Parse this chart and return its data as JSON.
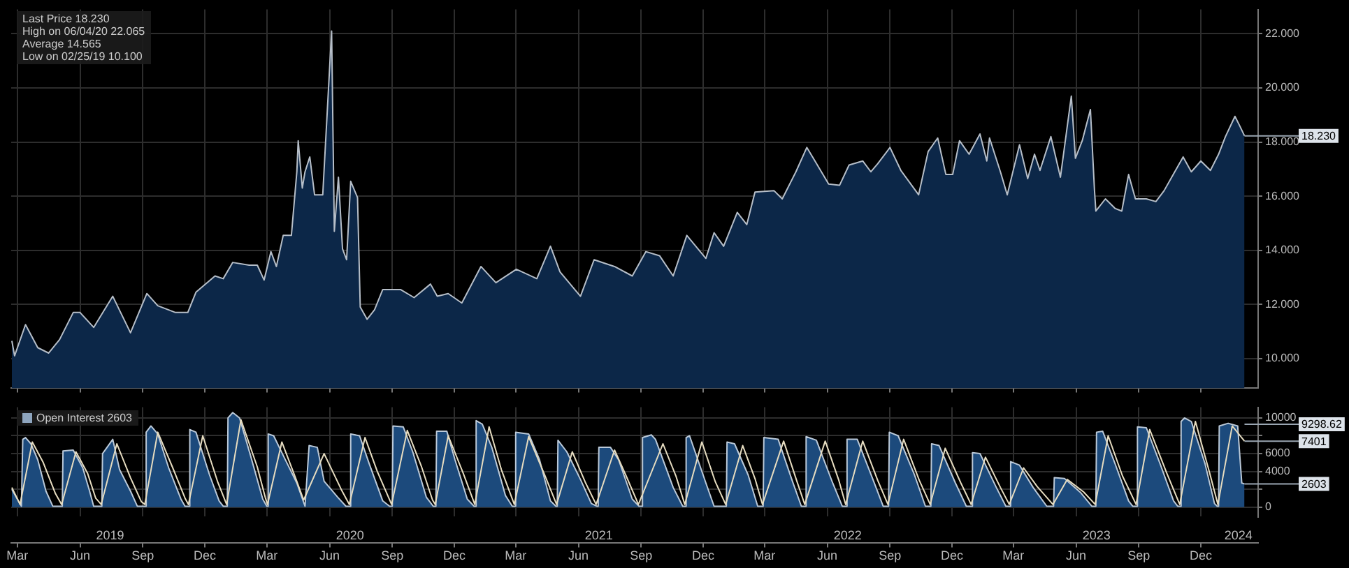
{
  "chart_data": [
    {
      "type": "area",
      "color": "#0c2748",
      "x": [
        "2019-02-21",
        "2019-02-25",
        "2019-03-13",
        "2019-03-31",
        "2019-04-16",
        "2019-05-02",
        "2019-05-22",
        "2019-06-01",
        "2019-06-21",
        "2019-07-19",
        "2019-08-14",
        "2019-09-07",
        "2019-09-23",
        "2019-10-19",
        "2019-11-06",
        "2019-11-18",
        "2019-12-16",
        "2019-12-28",
        "2020-01-11",
        "2020-02-04",
        "2020-02-16",
        "2020-02-26",
        "2020-03-07",
        "2020-03-15",
        "2020-03-25",
        "2020-04-06",
        "2020-04-14",
        "2020-04-16",
        "2020-04-22",
        "2020-04-26",
        "2020-05-03",
        "2020-05-10",
        "2020-05-22",
        "2020-06-04",
        "2020-06-08",
        "2020-06-14",
        "2020-06-20",
        "2020-06-26",
        "2020-07-02",
        "2020-07-12",
        "2020-07-16",
        "2020-07-26",
        "2020-08-06",
        "2020-08-18",
        "2020-09-13",
        "2020-10-03",
        "2020-10-27",
        "2020-11-06",
        "2020-11-22",
        "2020-12-12",
        "2021-01-09",
        "2021-01-31",
        "2021-03-02",
        "2021-04-01",
        "2021-04-21",
        "2021-05-05",
        "2021-06-04",
        "2021-06-24",
        "2021-07-24",
        "2021-08-19",
        "2021-09-08",
        "2021-09-28",
        "2021-10-18",
        "2021-11-07",
        "2021-12-05",
        "2021-12-17",
        "2021-12-31",
        "2022-01-20",
        "2022-02-03",
        "2022-02-15",
        "2022-03-15",
        "2022-03-27",
        "2022-04-16",
        "2022-05-02",
        "2022-05-14",
        "2022-06-03",
        "2022-06-19",
        "2022-07-03",
        "2022-07-23",
        "2022-08-04",
        "2022-08-14",
        "2022-09-01",
        "2022-09-17",
        "2022-10-13",
        "2022-10-27",
        "2022-11-10",
        "2022-11-22",
        "2022-12-02",
        "2022-12-12",
        "2022-12-26",
        "2023-01-11",
        "2023-01-21",
        "2023-01-25",
        "2023-02-10",
        "2023-02-20",
        "2023-03-10",
        "2023-03-22",
        "2023-04-01",
        "2023-04-09",
        "2023-04-25",
        "2023-05-09",
        "2023-05-25",
        "2023-05-31",
        "2023-06-10",
        "2023-06-22",
        "2023-06-28",
        "2023-06-30",
        "2023-07-14",
        "2023-07-28",
        "2023-08-07",
        "2023-08-17",
        "2023-08-27",
        "2023-09-12",
        "2023-09-26",
        "2023-10-08",
        "2023-11-05",
        "2023-11-17",
        "2023-12-01",
        "2023-12-15",
        "2023-12-27",
        "2024-01-06",
        "2024-01-20",
        "2024-01-26",
        "2024-02-03"
      ],
      "values": [
        10.65,
        10.1,
        11.25,
        10.4,
        10.2,
        10.7,
        11.7,
        11.7,
        11.15,
        12.3,
        10.95,
        12.4,
        11.95,
        11.7,
        11.7,
        12.45,
        13.05,
        12.95,
        13.55,
        13.45,
        13.45,
        12.9,
        13.95,
        13.4,
        14.55,
        14.55,
        16.9,
        18.05,
        16.3,
        16.9,
        17.45,
        16.05,
        16.05,
        22.1,
        14.7,
        16.7,
        14.05,
        13.65,
        16.55,
        15.95,
        11.9,
        11.45,
        11.8,
        12.55,
        12.55,
        12.25,
        12.75,
        12.3,
        12.4,
        12.05,
        13.4,
        12.8,
        13.3,
        12.95,
        14.15,
        13.2,
        12.3,
        13.65,
        13.4,
        13.05,
        13.95,
        13.8,
        13.05,
        14.55,
        13.7,
        14.65,
        14.15,
        15.4,
        14.95,
        16.15,
        16.2,
        15.9,
        16.9,
        17.8,
        17.3,
        16.45,
        16.4,
        17.15,
        17.3,
        16.9,
        17.2,
        17.8,
        16.95,
        16.05,
        17.65,
        18.15,
        16.8,
        16.8,
        18.05,
        17.55,
        18.3,
        17.3,
        18.15,
        16.9,
        16.05,
        17.9,
        16.65,
        17.55,
        16.95,
        18.2,
        16.7,
        19.7,
        17.4,
        18.05,
        19.2,
        16.2,
        15.45,
        15.9,
        15.55,
        15.45,
        16.8,
        15.9,
        15.9,
        15.8,
        16.2,
        17.45,
        16.9,
        17.3,
        16.95,
        17.55,
        18.2,
        18.95,
        18.65,
        18.23
      ],
      "xlim": [
        "2019-02-20",
        "2024-02-23"
      ],
      "xticks": [
        {
          "value": "2019-03-01",
          "label": null
        },
        {
          "value": "2019-06-01",
          "label": null
        },
        {
          "value": "2019-09-01",
          "label": null
        },
        {
          "value": "2019-12-01",
          "label": null
        },
        {
          "value": "2020-03-01",
          "label": null
        },
        {
          "value": "2020-06-01",
          "label": null
        },
        {
          "value": "2020-09-01",
          "label": null
        },
        {
          "value": "2020-12-01",
          "label": null
        },
        {
          "value": "2021-03-01",
          "label": null
        },
        {
          "value": "2021-06-01",
          "label": null
        },
        {
          "value": "2021-09-01",
          "label": null
        },
        {
          "value": "2021-12-01",
          "label": null
        },
        {
          "value": "2022-03-01",
          "label": null
        },
        {
          "value": "2022-06-01",
          "label": null
        },
        {
          "value": "2022-09-01",
          "label": null
        },
        {
          "value": "2022-12-01",
          "label": null
        },
        {
          "value": "2023-03-01",
          "label": null
        },
        {
          "value": "2023-06-01",
          "label": null
        },
        {
          "value": "2023-09-01",
          "label": null
        },
        {
          "value": "2023-12-01",
          "label": null
        }
      ],
      "ylim": [
        8.9,
        22.9
      ],
      "yticks": [
        {
          "value": 10,
          "label": "10.000"
        },
        {
          "value": 12,
          "label": "12.000"
        },
        {
          "value": 14,
          "label": "14.000"
        },
        {
          "value": 16,
          "label": "16.000"
        },
        {
          "value": 18,
          "label": "18.000"
        },
        {
          "value": 20,
          "label": "20.000"
        },
        {
          "value": 22,
          "label": "22.000"
        }
      ],
      "tick_labels": "y",
      "grid": true,
      "annotations": [
        "Last Price 18.230",
        "High on 06/04/20 22.065",
        "Average 14.565",
        "Low on 02/25/19 10.100",
        {
          "text": "18.230",
          "x": "2024-02-03",
          "y": 18.23
        }
      ]
    },
    {
      "type": "area",
      "series": [
        {
          "name": "Open Interest 2603",
          "color": "#1c4a7c",
          "x": [
            "2019-02-21",
            "2019-03-07",
            "2019-03-09",
            "2019-03-13",
            "2019-03-21",
            "2019-03-31",
            "2019-04-12",
            "2019-04-22",
            "2019-05-06",
            "2019-05-07",
            "2019-05-22",
            "2019-06-05",
            "2019-06-15",
            "2019-06-21",
            "2019-07-03",
            "2019-07-04",
            "2019-07-19",
            "2019-07-29",
            "2019-08-14",
            "2019-08-24",
            "2019-09-05",
            "2019-09-06",
            "2019-09-13",
            "2019-09-23",
            "2019-10-09",
            "2019-10-27",
            "2019-11-02",
            "2019-11-08",
            "2019-11-09",
            "2019-11-18",
            "2019-12-08",
            "2019-12-22",
            "2019-12-28",
            "2020-01-03",
            "2020-01-04",
            "2020-01-11",
            "2020-01-21",
            "2020-02-06",
            "2020-02-24",
            "2020-03-01",
            "2020-03-02",
            "2020-03-03",
            "2020-03-11",
            "2020-03-25",
            "2020-04-14",
            "2020-04-26",
            "2020-05-02",
            "2020-05-14",
            "2020-05-24",
            "2020-06-13",
            "2020-06-25",
            "2020-07-01",
            "2020-07-02",
            "2020-07-15",
            "2020-07-29",
            "2020-08-18",
            "2020-08-28",
            "2020-09-01",
            "2020-09-02",
            "2020-09-17",
            "2020-10-01",
            "2020-10-21",
            "2020-10-31",
            "2020-11-04",
            "2020-11-05",
            "2020-11-20",
            "2020-12-02",
            "2020-12-20",
            "2020-12-30",
            "2021-01-01",
            "2021-01-02",
            "2021-01-11",
            "2021-01-25",
            "2021-02-14",
            "2021-02-24",
            "2021-02-28",
            "2021-03-01",
            "2021-03-20",
            "2021-04-05",
            "2021-04-21",
            "2021-04-29",
            "2021-05-01",
            "2021-05-02",
            "2021-05-15",
            "2021-06-04",
            "2021-06-20",
            "2021-06-28",
            "2021-06-30",
            "2021-07-01",
            "2021-07-18",
            "2021-07-30",
            "2021-08-19",
            "2021-08-29",
            "2021-09-02",
            "2021-09-03",
            "2021-09-16",
            "2021-09-22",
            "2021-10-18",
            "2021-11-01",
            "2021-11-05",
            "2021-11-06",
            "2021-11-11",
            "2021-12-05",
            "2021-12-17",
            "2022-01-04",
            "2022-01-05",
            "2022-01-16",
            "2022-02-05",
            "2022-02-19",
            "2022-02-27",
            "2022-02-28",
            "2022-03-21",
            "2022-04-10",
            "2022-04-24",
            "2022-04-30",
            "2022-05-01",
            "2022-05-16",
            "2022-06-09",
            "2022-06-23",
            "2022-06-29",
            "2022-06-30",
            "2022-07-15",
            "2022-08-08",
            "2022-08-22",
            "2022-08-30",
            "2022-08-31",
            "2022-09-13",
            "2022-10-07",
            "2022-10-23",
            "2022-10-31",
            "2022-11-01",
            "2022-11-12",
            "2022-12-06",
            "2022-12-22",
            "2022-12-30",
            "2022-12-31",
            "2023-01-11",
            "2023-02-04",
            "2023-02-18",
            "2023-02-24",
            "2023-02-25",
            "2023-03-10",
            "2023-03-30",
            "2023-04-19",
            "2023-04-29",
            "2023-04-30",
            "2023-05-15",
            "2023-06-08",
            "2023-06-24",
            "2023-06-30",
            "2023-07-01",
            "2023-07-10",
            "2023-07-28",
            "2023-08-17",
            "2023-08-23",
            "2023-08-29",
            "2023-08-30",
            "2023-09-12",
            "2023-10-02",
            "2023-10-22",
            "2023-10-28",
            "2023-11-01",
            "2023-11-02",
            "2023-11-07",
            "2023-11-17",
            "2023-12-07",
            "2023-12-21",
            "2023-12-25",
            "2023-12-27",
            "2023-12-28",
            "2024-01-10",
            "2024-01-24",
            "2024-01-30",
            "2024-02-03"
          ],
          "values": [
            2000,
            100,
            7600,
            7800,
            7100,
            5300,
            1800,
            100,
            100,
            6300,
            6400,
            4400,
            1800,
            100,
            100,
            6000,
            7600,
            4200,
            1800,
            100,
            100,
            8400,
            9100,
            8200,
            4400,
            900,
            100,
            100,
            8700,
            8400,
            3600,
            700,
            100,
            100,
            10000,
            10600,
            10000,
            5800,
            900,
            100,
            100,
            8200,
            8000,
            5800,
            2700,
            100,
            6900,
            6700,
            2900,
            1100,
            100,
            100,
            8200,
            8000,
            4900,
            700,
            100,
            100,
            9100,
            9000,
            6200,
            1100,
            100,
            100,
            8500,
            8500,
            5300,
            900,
            100,
            100,
            9700,
            9300,
            6700,
            1300,
            100,
            100,
            8400,
            8200,
            5300,
            700,
            100,
            100,
            7500,
            6200,
            3100,
            400,
            100,
            100,
            6700,
            6700,
            5300,
            900,
            100,
            100,
            7800,
            8100,
            7600,
            2200,
            100,
            100,
            7800,
            8000,
            2700,
            100,
            100,
            7300,
            7100,
            3600,
            100,
            100,
            7800,
            7600,
            3100,
            100,
            100,
            7900,
            7500,
            2700,
            100,
            100,
            7600,
            7600,
            2900,
            100,
            100,
            8400,
            8000,
            3600,
            100,
            100,
            7100,
            6900,
            2700,
            100,
            100,
            6100,
            6000,
            2200,
            100,
            100,
            5100,
            4700,
            2200,
            100,
            100,
            3300,
            3200,
            1600,
            100,
            100,
            8400,
            8500,
            4900,
            700,
            100,
            100,
            9000,
            8900,
            4900,
            700,
            100,
            100,
            9600,
            10000,
            9600,
            4900,
            400,
            100,
            100,
            9100,
            9400,
            9100,
            2700,
            2603
          ]
        },
        {
          "type": "line",
          "color": "#e6dcc0",
          "x": [
            "2019-02-21",
            "2019-03-05",
            "2019-03-23",
            "2019-04-08",
            "2019-04-26",
            "2019-05-05",
            "2019-05-26",
            "2019-06-12",
            "2019-06-24",
            "2019-07-02",
            "2019-07-25",
            "2019-08-14",
            "2019-08-30",
            "2019-09-04",
            "2019-09-23",
            "2019-10-15",
            "2019-11-02",
            "2019-11-07",
            "2019-11-28",
            "2019-12-20",
            "2020-01-02",
            "2020-01-23",
            "2020-02-16",
            "2020-02-28",
            "2020-03-02",
            "2020-03-23",
            "2020-04-12",
            "2020-04-24",
            "2020-05-24",
            "2020-06-18",
            "2020-06-30",
            "2020-07-23",
            "2020-08-10",
            "2020-08-31",
            "2020-09-23",
            "2020-10-14",
            "2020-10-30",
            "2020-11-03",
            "2020-11-22",
            "2020-12-14",
            "2020-12-31",
            "2021-01-21",
            "2021-02-08",
            "2021-02-27",
            "2021-03-20",
            "2021-04-12",
            "2021-04-30",
            "2021-05-23",
            "2021-06-11",
            "2021-06-27",
            "2021-07-24",
            "2021-08-10",
            "2021-08-28",
            "2021-10-03",
            "2021-10-22",
            "2021-11-04",
            "2021-11-29",
            "2021-12-19",
            "2022-01-03",
            "2022-01-28",
            "2022-02-15",
            "2022-02-26",
            "2022-03-29",
            "2022-04-17",
            "2022-04-29",
            "2022-05-29",
            "2022-06-18",
            "2022-06-28",
            "2022-07-23",
            "2022-08-14",
            "2022-08-29",
            "2022-09-21",
            "2022-10-14",
            "2022-10-30",
            "2022-11-21",
            "2022-12-14",
            "2022-12-29",
            "2023-01-19",
            "2023-02-10",
            "2023-02-23",
            "2023-03-16",
            "2023-04-05",
            "2023-04-28",
            "2023-05-19",
            "2023-06-12",
            "2023-06-29",
            "2023-07-18",
            "2023-08-08",
            "2023-08-28",
            "2023-09-17",
            "2023-10-12",
            "2023-10-31",
            "2023-11-23",
            "2023-12-14",
            "2023-12-26",
            "2024-01-16",
            "2024-02-03"
          ],
          "values": [
            2200,
            300,
            7300,
            5000,
            1500,
            300,
            6200,
            3800,
            1000,
            300,
            7100,
            3300,
            600,
            300,
            8400,
            4400,
            1000,
            300,
            8000,
            2800,
            300,
            9800,
            4500,
            1000,
            300,
            7300,
            3300,
            800,
            6000,
            2000,
            300,
            7800,
            4000,
            300,
            8600,
            4500,
            800,
            300,
            8000,
            3800,
            300,
            9000,
            4200,
            300,
            7900,
            3700,
            300,
            6200,
            2800,
            300,
            6400,
            3500,
            300,
            7100,
            3500,
            300,
            7300,
            2800,
            300,
            6900,
            3200,
            300,
            7400,
            3000,
            300,
            7400,
            3000,
            300,
            7400,
            3000,
            300,
            7600,
            3000,
            300,
            6600,
            2700,
            300,
            5600,
            2200,
            300,
            4400,
            2300,
            300,
            3100,
            1700,
            300,
            8000,
            3500,
            300,
            8700,
            3800,
            300,
            9600,
            3800,
            300,
            9100,
            7401
          ]
        }
      ],
      "xlim": [
        "2019-02-20",
        "2024-02-23"
      ],
      "xticks": [
        {
          "value": "2019-03-01",
          "label": "Mar"
        },
        {
          "value": "2019-06-01",
          "label": "Jun"
        },
        {
          "value": "2019-09-01",
          "label": "Sep"
        },
        {
          "value": "2019-12-01",
          "label": "Dec"
        },
        {
          "value": "2020-03-01",
          "label": "Mar"
        },
        {
          "value": "2020-06-01",
          "label": "Jun"
        },
        {
          "value": "2020-09-01",
          "label": "Sep"
        },
        {
          "value": "2020-12-01",
          "label": "Dec"
        },
        {
          "value": "2021-03-01",
          "label": "Mar"
        },
        {
          "value": "2021-06-01",
          "label": "Jun"
        },
        {
          "value": "2021-09-01",
          "label": "Sep"
        },
        {
          "value": "2021-12-01",
          "label": "Dec"
        },
        {
          "value": "2022-03-01",
          "label": "Mar"
        },
        {
          "value": "2022-06-01",
          "label": "Jun"
        },
        {
          "value": "2022-09-01",
          "label": "Sep"
        },
        {
          "value": "2022-12-01",
          "label": "Dec"
        },
        {
          "value": "2023-03-01",
          "label": "Mar"
        },
        {
          "value": "2023-06-01",
          "label": "Jun"
        },
        {
          "value": "2023-09-01",
          "label": "Sep"
        },
        {
          "value": "2023-12-01",
          "label": "Dec"
        }
      ],
      "x2lim": [
        "2019-02-20",
        "2024-02-23"
      ],
      "x2ticks": [
        {
          "value": "2019-07-15",
          "label": "2019"
        },
        {
          "value": "2020-07-01",
          "label": "2020"
        },
        {
          "value": "2021-07-01",
          "label": "2021"
        },
        {
          "value": "2022-07-01",
          "label": "2022"
        },
        {
          "value": "2023-07-01",
          "label": "2023"
        },
        {
          "value": "2024-01-25",
          "label": "2024"
        }
      ],
      "ylim": [
        -1100,
        11200
      ],
      "yticks": [
        0,
        {
          "value": 2000,
          "label": null
        },
        4000,
        6000,
        {
          "value": 8000,
          "label": null
        },
        10000
      ],
      "grid": true,
      "legend": "top left",
      "annotations": [
        {
          "text": "9298.62",
          "x": "2024-02-03",
          "y": 9298.62
        },
        {
          "text": "7401",
          "x": "2024-02-03",
          "y": 7401
        },
        {
          "text": "2603",
          "x": "2024-02-03",
          "y": 2603
        }
      ]
    }
  ]
}
